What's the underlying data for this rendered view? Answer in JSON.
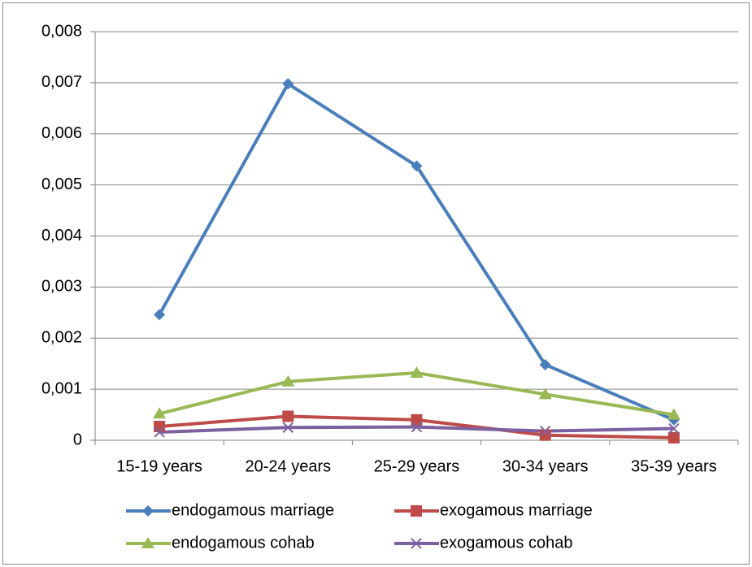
{
  "chart_data": {
    "type": "line",
    "categories": [
      "15-19 years",
      "20-24 years",
      "25-29 years",
      "30-34 years",
      "35-39 years"
    ],
    "series": [
      {
        "name": "endogamous marriage",
        "color": "#4a7ebb",
        "marker": "diamond",
        "values": [
          0.00246,
          0.00698,
          0.00537,
          0.00148,
          0.0004
        ]
      },
      {
        "name": "exogamous marriage",
        "color": "#be4b48",
        "marker": "square",
        "values": [
          0.00027,
          0.00047,
          0.0004,
          0.0001,
          5e-05
        ]
      },
      {
        "name": "endogamous cohab",
        "color": "#98b954",
        "marker": "triangle",
        "values": [
          0.00052,
          0.00115,
          0.00132,
          0.0009,
          0.0005
        ]
      },
      {
        "name": "exogamous cohab",
        "color": "#7d60a0",
        "marker": "x",
        "values": [
          0.00016,
          0.00025,
          0.00026,
          0.00018,
          0.00023
        ]
      }
    ],
    "ylim": [
      0,
      0.008
    ],
    "yticks": [
      0,
      {
        "value": 0.001,
        "label": "0,001"
      },
      {
        "value": 0.002,
        "label": "0,002"
      },
      {
        "value": 0.003,
        "label": "0,003"
      },
      {
        "value": 0.004,
        "label": "0,004"
      },
      {
        "value": 0.005,
        "label": "0,005"
      },
      {
        "value": 0.006,
        "label": "0,006"
      },
      {
        "value": 0.007,
        "label": "0,007"
      },
      {
        "value": 0.008,
        "label": "0,008"
      }
    ],
    "grid": true,
    "legend": "bottom"
  }
}
